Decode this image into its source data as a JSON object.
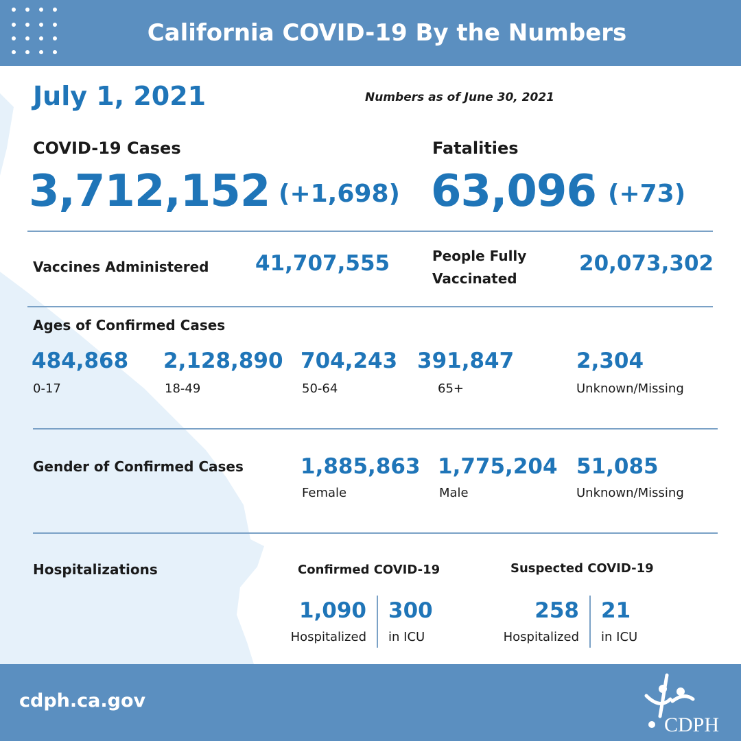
{
  "header": {
    "title": "California COVID-19 By the Numbers"
  },
  "date": "July 1, 2021",
  "as_of": "Numbers as of June 30, 2021",
  "cases": {
    "label": "COVID-19 Cases",
    "value": "3,712,152",
    "delta": "(+1,698)"
  },
  "fatalities": {
    "label": "Fatalities",
    "value": "63,096",
    "delta": "(+73)"
  },
  "vaccines": {
    "label": "Vaccines Administered",
    "value": "41,707,555"
  },
  "fully_vaccinated": {
    "label_line1": "People Fully",
    "label_line2": "Vaccinated",
    "value": "20,073,302"
  },
  "ages": {
    "label": "Ages of Confirmed Cases",
    "groups": [
      {
        "value": "484,868",
        "label": "0-17"
      },
      {
        "value": "2,128,890",
        "label": "18-49"
      },
      {
        "value": "704,243",
        "label": "50-64"
      },
      {
        "value": "391,847",
        "label": "65+"
      },
      {
        "value": "2,304",
        "label": "Unknown/Missing"
      }
    ]
  },
  "gender": {
    "label": "Gender of Confirmed Cases",
    "groups": [
      {
        "value": "1,885,863",
        "label": "Female"
      },
      {
        "value": "1,775,204",
        "label": "Male"
      },
      {
        "value": "51,085",
        "label": "Unknown/Missing"
      }
    ]
  },
  "hospitalizations": {
    "label": "Hospitalizations",
    "confirmed": {
      "label": "Confirmed COVID-19",
      "hospitalized_value": "1,090",
      "hospitalized_label": "Hospitalized",
      "icu_value": "300",
      "icu_label": "in ICU"
    },
    "suspected": {
      "label": "Suspected COVID-19",
      "hospitalized_value": "258",
      "hospitalized_label": "Hospitalized",
      "icu_value": "21",
      "icu_label": "in ICU"
    }
  },
  "footer": {
    "url": "cdph.ca.gov",
    "logo_text": "CDPH"
  },
  "colors": {
    "header_bg": "#5b8fc0",
    "accent_blue": "#1f75b8",
    "map_fill": "#e6f1fa",
    "rule": "#7aa1c6"
  },
  "icons": {
    "dots": "dot-grid-icon",
    "logo": "cdph-logo-icon",
    "map": "california-map-icon"
  }
}
